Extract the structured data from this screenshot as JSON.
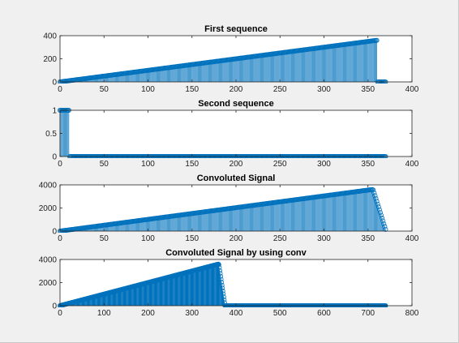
{
  "chart_data": [
    {
      "type": "stem",
      "title": "First sequence",
      "xlim": [
        0,
        400
      ],
      "ylim": [
        0,
        400
      ],
      "xticks": [
        0,
        50,
        100,
        150,
        200,
        250,
        300,
        350,
        400
      ],
      "yticks": [
        0,
        200,
        400
      ],
      "series": [
        {
          "x_start": 0,
          "x_end": 360,
          "y_start": 0,
          "y_end": 360
        },
        {
          "x_start": 361,
          "x_end": 370,
          "y_start": 0,
          "y_end": 0
        }
      ]
    },
    {
      "type": "stem",
      "title": "Second sequence",
      "xlim": [
        0,
        400
      ],
      "ylim": [
        0,
        1
      ],
      "xticks": [
        0,
        50,
        100,
        150,
        200,
        250,
        300,
        350,
        400
      ],
      "yticks": [
        0,
        0.5,
        1
      ],
      "series": [
        {
          "x_start": 0,
          "x_end": 10,
          "y_start": 1,
          "y_end": 1
        },
        {
          "x_start": 11,
          "x_end": 370,
          "y_start": 0,
          "y_end": 0
        }
      ]
    },
    {
      "type": "stem",
      "title": "Convoluted Signal",
      "xlim": [
        0,
        400
      ],
      "ylim": [
        0,
        4000
      ],
      "xticks": [
        0,
        50,
        100,
        150,
        200,
        250,
        300,
        350,
        400
      ],
      "yticks": [
        0,
        2000,
        4000
      ],
      "series": [
        {
          "x_start": 0,
          "x_end": 355,
          "y_start": 0,
          "y_end": 3600
        },
        {
          "x_start": 356,
          "x_end": 370,
          "y_start": 3550,
          "y_end": 150
        }
      ]
    },
    {
      "type": "stem",
      "title": "Convoluted Signal by using conv",
      "xlim": [
        0,
        800
      ],
      "ylim": [
        0,
        4000
      ],
      "xticks": [
        0,
        100,
        200,
        300,
        400,
        500,
        600,
        700,
        800
      ],
      "yticks": [
        0,
        2000,
        4000
      ],
      "series": [
        {
          "x_start": 0,
          "x_end": 360,
          "y_start": 0,
          "y_end": 3600
        },
        {
          "x_start": 361,
          "x_end": 375,
          "y_start": 3550,
          "y_end": 0
        },
        {
          "x_start": 376,
          "x_end": 740,
          "y_start": 0,
          "y_end": 0
        }
      ]
    }
  ],
  "colors": {
    "stem": "#0072bd",
    "axes_bg": "#ffffff",
    "figure_bg": "#f0f0f0"
  }
}
